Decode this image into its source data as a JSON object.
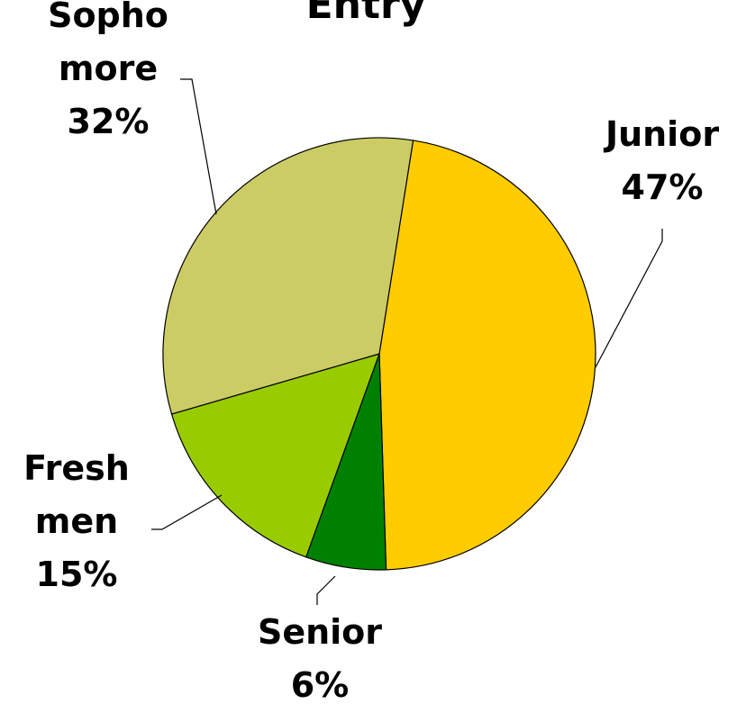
{
  "chart_data": {
    "type": "pie",
    "title": "Entry",
    "categories": [
      "Junior",
      "Senior",
      "Fresh men",
      "Sopho more"
    ],
    "values": [
      47,
      6,
      15,
      32
    ],
    "value_labels": [
      "47%",
      "6%",
      "15%",
      "32%"
    ],
    "colors": [
      "#ffcc00",
      "#008000",
      "#99cc00",
      "#cccc66"
    ]
  }
}
